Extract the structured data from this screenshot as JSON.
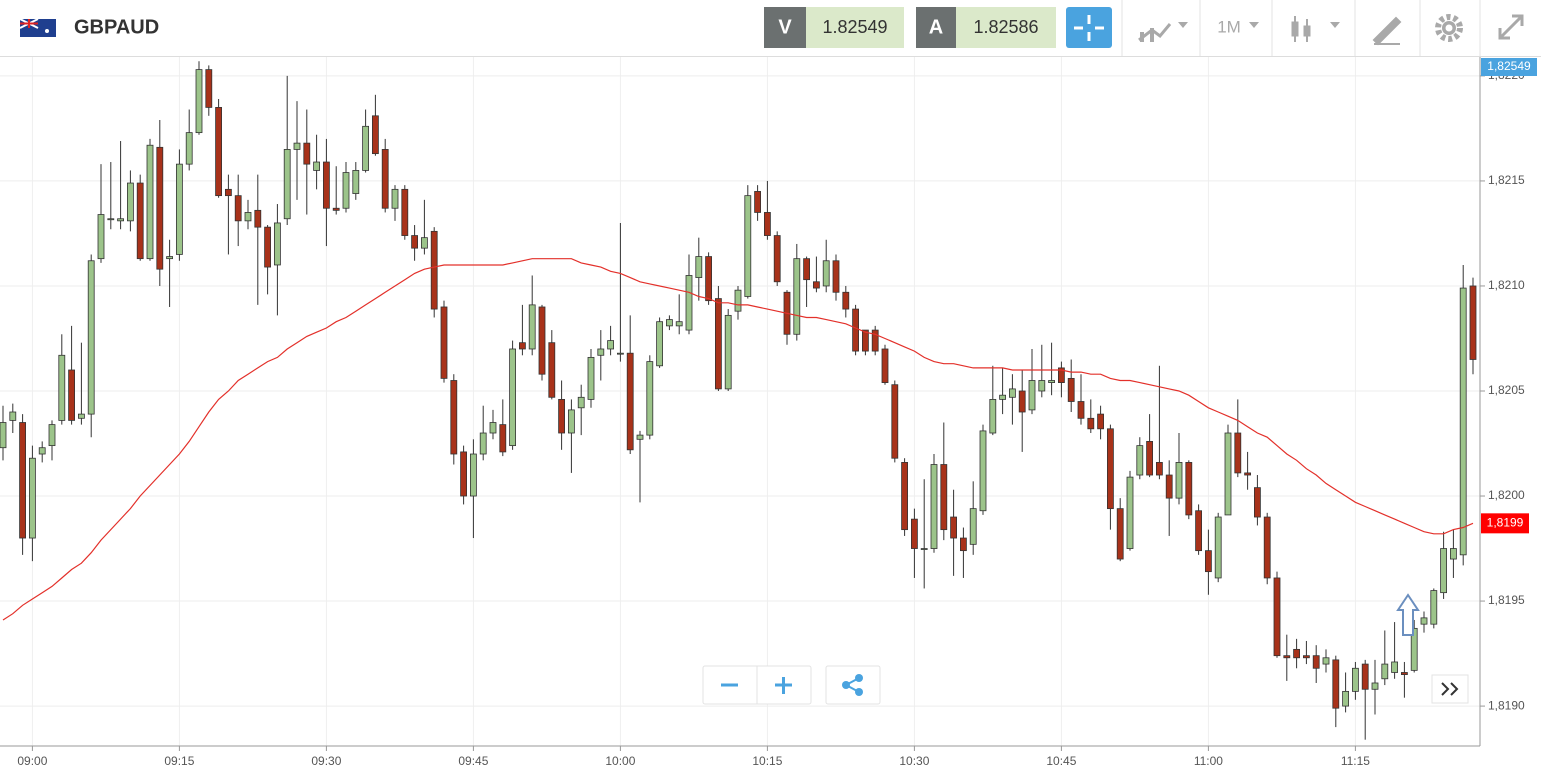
{
  "header": {
    "symbol": "GBPAUD",
    "bid_tag": "V",
    "bid": "1.82549",
    "ask_tag": "A",
    "ask": "1.82586",
    "timeframe": "1M"
  },
  "chart_data": {
    "type": "candlestick",
    "up_color": "#9cc48a",
    "down_color": "#a8321a",
    "grid": true,
    "categories": [
      null,
      null,
      null,
      "09:00",
      null,
      null,
      null,
      null,
      null,
      null,
      null,
      null,
      null,
      null,
      null,
      null,
      null,
      null,
      "09:15",
      null,
      null,
      null,
      null,
      null,
      null,
      null,
      null,
      null,
      null,
      null,
      null,
      null,
      null,
      "09:30",
      null,
      null,
      null,
      null,
      null,
      null,
      null,
      null,
      null,
      null,
      null,
      null,
      null,
      null,
      "09:45",
      null,
      null,
      null,
      null,
      null,
      null,
      null,
      null,
      null,
      null,
      null,
      null,
      null,
      null,
      "10:00",
      null,
      null,
      null,
      null,
      null,
      null,
      null,
      null,
      null,
      null,
      null,
      null,
      null,
      null,
      "10:15",
      null,
      null,
      null,
      null,
      null,
      null,
      null,
      null,
      null,
      null,
      null,
      null,
      null,
      null,
      "10:30",
      null,
      null,
      null,
      null,
      null,
      null,
      null,
      null,
      null,
      null,
      null,
      null,
      null,
      null,
      "10:45",
      null,
      null,
      null,
      null,
      null,
      null,
      null,
      null,
      null,
      null,
      null,
      null,
      null,
      null,
      "11:00",
      null,
      null,
      null,
      null,
      null,
      null,
      null,
      null,
      null,
      null,
      null,
      null,
      null,
      null,
      "11:15",
      null,
      null,
      null,
      null,
      null,
      null,
      null,
      null,
      null,
      null,
      null,
      null
    ],
    "open": [
      1.82023,
      1.82036,
      1.82035,
      1.8198,
      1.8202,
      1.82024,
      1.82036,
      1.8206,
      1.82037,
      1.82039,
      1.82113,
      1.82132,
      1.82131,
      1.82131,
      1.82149,
      1.82113,
      1.82166,
      1.82113,
      1.82115,
      1.82158,
      1.82173,
      1.82203,
      1.82185,
      1.82146,
      1.82143,
      1.82131,
      1.82136,
      1.82128,
      1.8211,
      1.82132,
      1.82165,
      1.82168,
      1.82155,
      1.82159,
      1.82137,
      1.82137,
      1.82144,
      1.82155,
      1.82181,
      1.82165,
      1.82137,
      1.82146,
      1.82124,
      1.82118,
      1.82126,
      1.8209,
      1.82055,
      1.82021,
      1.82,
      1.8202,
      1.8203,
      1.82034,
      1.82024,
      1.82073,
      1.8207,
      1.8209,
      1.82073,
      1.82046,
      1.8203,
      1.82042,
      1.82046,
      1.82067,
      1.8207,
      1.82068,
      1.82068,
      1.82027,
      1.82029,
      1.82062,
      1.82081,
      1.82081,
      1.82079,
      1.82104,
      1.82114,
      1.82094,
      1.82051,
      1.82088,
      1.82095,
      1.82145,
      1.82135,
      1.82124,
      1.82097,
      1.82077,
      1.82113,
      1.82102,
      1.821,
      1.82112,
      1.82097,
      1.82089,
      1.82079,
      1.82079,
      1.8207,
      1.82053,
      1.82016,
      1.81989,
      1.81975,
      1.81975,
      1.82015,
      1.8199,
      1.8198,
      1.81977,
      1.81993,
      1.8203,
      1.82046,
      1.82047,
      1.8205,
      1.82041,
      1.8205,
      1.82054,
      1.82061,
      1.82056,
      1.82045,
      1.82037,
      1.82039,
      1.82032,
      1.81994,
      1.81975,
      1.8201,
      1.82026,
      1.82016,
      1.8201,
      1.81999,
      1.82016,
      1.81993,
      1.81974,
      1.81961,
      1.81991,
      1.8203,
      1.82011,
      1.82004,
      1.8199,
      1.81961,
      1.81924,
      1.81927,
      1.81924,
      1.81924,
      1.8192,
      1.81922,
      1.819,
      1.81907,
      1.8192,
      1.81908,
      1.81913,
      1.81916,
      1.81916,
      1.81917,
      1.81939,
      1.81939,
      1.81954,
      1.8197,
      1.81972,
      1.821
    ],
    "high": [
      1.82043,
      1.82044,
      1.82039,
      1.82024,
      1.82026,
      1.82036,
      1.82077,
      1.82081,
      1.82073,
      1.82115,
      1.82158,
      1.82159,
      1.82169,
      1.82155,
      1.82153,
      1.8217,
      1.82179,
      1.82122,
      1.82165,
      1.82184,
      1.82207,
      1.82205,
      1.82189,
      1.82153,
      1.82153,
      1.82141,
      1.82153,
      1.82129,
      1.82139,
      1.822,
      1.82188,
      1.82184,
      1.82172,
      1.8217,
      1.82157,
      1.82159,
      1.82159,
      1.82184,
      1.82191,
      1.8217,
      1.82148,
      1.82148,
      1.82129,
      1.82141,
      1.82128,
      1.82093,
      1.82058,
      1.82024,
      1.82027,
      1.82043,
      1.82041,
      1.82046,
      1.82074,
      1.82091,
      1.82105,
      1.82091,
      1.82079,
      1.82055,
      1.82046,
      1.82053,
      1.8207,
      1.82079,
      1.82081,
      1.8213,
      1.82086,
      1.82031,
      1.82067,
      1.82085,
      1.82086,
      1.82096,
      1.82115,
      1.82123,
      1.82116,
      1.821,
      1.82089,
      1.821,
      1.82148,
      1.82148,
      1.8215,
      1.82126,
      1.82098,
      1.8212,
      1.82114,
      1.82114,
      1.82122,
      1.82115,
      1.821,
      1.82091,
      1.82079,
      1.82081,
      1.82072,
      1.82055,
      1.82018,
      1.81994,
      1.82008,
      1.8202,
      1.82035,
      1.82003,
      1.81985,
      1.82007,
      1.82034,
      1.82062,
      1.82061,
      1.82058,
      1.8206,
      1.8207,
      1.82072,
      1.82073,
      1.82064,
      1.82065,
      1.82058,
      1.82046,
      1.82043,
      1.82034,
      1.81999,
      1.82012,
      1.82028,
      1.82039,
      1.82062,
      1.82017,
      1.8203,
      1.82017,
      1.81996,
      1.81984,
      1.81992,
      1.82034,
      1.82046,
      1.82021,
      1.8201,
      1.81992,
      1.81964,
      1.81934,
      1.81932,
      1.81931,
      1.81929,
      1.81927,
      1.81924,
      1.81916,
      1.81921,
      1.81922,
      1.81922,
      1.81936,
      1.8194,
      1.81921,
      1.81941,
      1.81945,
      1.81956,
      1.81983,
      1.81984,
      1.8211,
      1.82104
    ],
    "low": [
      1.82017,
      1.8203,
      1.81972,
      1.81969,
      1.82016,
      1.82017,
      1.82034,
      1.82034,
      1.82034,
      1.82028,
      1.82111,
      1.82127,
      1.82127,
      1.82126,
      1.82112,
      1.82112,
      1.821,
      1.8209,
      1.82112,
      1.82155,
      1.82172,
      1.82181,
      1.82142,
      1.82115,
      1.82119,
      1.82127,
      1.82091,
      1.82096,
      1.82086,
      1.82129,
      1.82141,
      1.82134,
      1.82146,
      1.82119,
      1.82134,
      1.82135,
      1.82141,
      1.82154,
      1.82162,
      1.82135,
      1.82131,
      1.82122,
      1.82112,
      1.82115,
      1.82085,
      1.82054,
      1.82015,
      1.81996,
      1.8198,
      1.82017,
      1.82027,
      1.82019,
      1.82022,
      1.82067,
      1.82067,
      1.82055,
      1.82046,
      1.82022,
      1.82011,
      1.82029,
      1.82042,
      1.82055,
      1.82067,
      1.82064,
      1.8202,
      1.81997,
      1.82027,
      1.82061,
      1.82079,
      1.82077,
      1.82077,
      1.82093,
      1.82091,
      1.8205,
      1.8205,
      1.82084,
      1.82094,
      1.82131,
      1.82122,
      1.821,
      1.82072,
      1.82074,
      1.8209,
      1.82097,
      1.82097,
      1.82093,
      1.82085,
      1.82067,
      1.82067,
      1.82067,
      1.82053,
      1.82016,
      1.81981,
      1.81961,
      1.81956,
      1.81973,
      1.81979,
      1.81962,
      1.81961,
      1.81972,
      1.81991,
      1.82029,
      1.82039,
      1.82034,
      1.82021,
      1.82039,
      1.82047,
      1.82048,
      1.82047,
      1.8204,
      1.82034,
      1.8203,
      1.82027,
      1.81984,
      1.81969,
      1.81974,
      1.82008,
      1.82009,
      1.82008,
      1.81981,
      1.81996,
      1.81989,
      1.81972,
      1.81953,
      1.81959,
      1.81991,
      1.82009,
      1.82003,
      1.81986,
      1.81958,
      1.81923,
      1.81912,
      1.81918,
      1.8192,
      1.81911,
      1.81916,
      1.8189,
      1.81897,
      1.81903,
      1.81884,
      1.81896,
      1.8191,
      1.81913,
      1.81904,
      1.81916,
      1.81935,
      1.81937,
      1.81951,
      1.81961,
      1.81967,
      1.82058
    ],
    "close": [
      1.82035,
      1.8204,
      1.8198,
      1.82018,
      1.82023,
      1.82034,
      1.82067,
      1.82036,
      1.82039,
      1.82112,
      1.82134,
      1.82132,
      1.82132,
      1.82149,
      1.82113,
      1.82167,
      1.82108,
      1.82114,
      1.82158,
      1.82173,
      1.82203,
      1.82185,
      1.82143,
      1.82143,
      1.82131,
      1.82135,
      1.82128,
      1.82109,
      1.8213,
      1.82165,
      1.82168,
      1.82158,
      1.82159,
      1.82137,
      1.82136,
      1.82154,
      1.82155,
      1.82176,
      1.82163,
      1.82137,
      1.82146,
      1.82124,
      1.82118,
      1.82123,
      1.82089,
      1.82056,
      1.8202,
      1.82,
      1.8202,
      1.8203,
      1.82035,
      1.82021,
      1.8207,
      1.8207,
      1.82091,
      1.82058,
      1.82047,
      1.8203,
      1.82041,
      1.82047,
      1.82066,
      1.8207,
      1.82074,
      1.82068,
      1.82022,
      1.82029,
      1.82064,
      1.82083,
      1.82084,
      1.82083,
      1.82105,
      1.82114,
      1.82093,
      1.82051,
      1.82086,
      1.82098,
      1.82143,
      1.82135,
      1.82124,
      1.82102,
      1.82077,
      1.82113,
      1.82103,
      1.82099,
      1.82112,
      1.82097,
      1.82089,
      1.82069,
      1.82069,
      1.82069,
      1.82054,
      1.82018,
      1.81984,
      1.81975,
      1.81975,
      1.82015,
      1.81984,
      1.8198,
      1.81974,
      1.81994,
      1.82031,
      1.82046,
      1.82048,
      1.82051,
      1.8204,
      1.82055,
      1.82055,
      1.82055,
      1.82054,
      1.82045,
      1.82037,
      1.82032,
      1.82032,
      1.81994,
      1.8197,
      1.82009,
      1.82024,
      1.8201,
      1.8201,
      1.81999,
      1.82016,
      1.81991,
      1.81974,
      1.81964,
      1.8199,
      1.8203,
      1.82011,
      1.8201,
      1.8199,
      1.81961,
      1.81924,
      1.81923,
      1.81923,
      1.81923,
      1.81918,
      1.81923,
      1.81899,
      1.81907,
      1.81918,
      1.81908,
      1.81911,
      1.8192,
      1.81921,
      1.81915,
      1.81937,
      1.81942,
      1.81955,
      1.81975,
      1.81975,
      1.82099,
      1.82065
    ],
    "line": {
      "color": "#e3302a",
      "values": [
        1.81941,
        1.81944,
        1.81948,
        1.81951,
        1.81954,
        1.81957,
        1.81961,
        1.81965,
        1.81968,
        1.81973,
        1.81979,
        1.81984,
        1.81989,
        1.81994,
        1.82,
        1.82005,
        1.8201,
        1.82015,
        1.8202,
        1.82026,
        1.82033,
        1.8204,
        1.82046,
        1.8205,
        1.82055,
        1.82058,
        1.82061,
        1.82064,
        1.82066,
        1.8207,
        1.82073,
        1.82076,
        1.82078,
        1.8208,
        1.82083,
        1.82085,
        1.82088,
        1.82091,
        1.82094,
        1.82097,
        1.821,
        1.82103,
        1.82106,
        1.82108,
        1.82109,
        1.8211,
        1.8211,
        1.8211,
        1.8211,
        1.8211,
        1.8211,
        1.8211,
        1.82111,
        1.82112,
        1.82113,
        1.82113,
        1.82113,
        1.82113,
        1.82113,
        1.82111,
        1.8211,
        1.82109,
        1.82107,
        1.82106,
        1.82104,
        1.82102,
        1.82101,
        1.821,
        1.82099,
        1.82098,
        1.82097,
        1.82095,
        1.82094,
        1.82092,
        1.82092,
        1.82091,
        1.82091,
        1.8209,
        1.82089,
        1.82088,
        1.82087,
        1.82086,
        1.82085,
        1.82085,
        1.82084,
        1.82083,
        1.82082,
        1.8208,
        1.82078,
        1.82077,
        1.82075,
        1.82073,
        1.82071,
        1.82069,
        1.82066,
        1.82064,
        1.82063,
        1.82063,
        1.82062,
        1.82061,
        1.82061,
        1.82061,
        1.82061,
        1.8206,
        1.8206,
        1.8206,
        1.8206,
        1.8206,
        1.8206,
        1.82059,
        1.82059,
        1.82058,
        1.82058,
        1.82056,
        1.82055,
        1.82055,
        1.82054,
        1.82053,
        1.82052,
        1.82051,
        1.8205,
        1.82048,
        1.82045,
        1.82042,
        1.8204,
        1.82038,
        1.82036,
        1.82033,
        1.8203,
        1.82028,
        1.82024,
        1.8202,
        1.82017,
        1.82013,
        1.8201,
        1.82006,
        1.82003,
        1.82,
        1.81997,
        1.81995,
        1.81993,
        1.81991,
        1.81989,
        1.81987,
        1.81985,
        1.81983,
        1.81982,
        1.81982,
        1.81984,
        1.81985,
        1.81987
      ],
      "last_label": "1,8199"
    },
    "price_label": {
      "value": 1.82549,
      "label": "1,82549",
      "color": "#4aa3df"
    },
    "ylim": [
      1.81881,
      1.82209
    ],
    "yticks": [
      {
        "value": 1.819,
        "label": "1,8190"
      },
      {
        "value": 1.8195,
        "label": "1,8195"
      },
      {
        "value": 1.82,
        "label": "1,8200"
      },
      {
        "value": 1.8205,
        "label": "1,8205"
      },
      {
        "value": 1.821,
        "label": "1,8210"
      },
      {
        "value": 1.8215,
        "label": "1,8215"
      },
      {
        "value": 1.822,
        "label": "1,8220"
      }
    ]
  }
}
